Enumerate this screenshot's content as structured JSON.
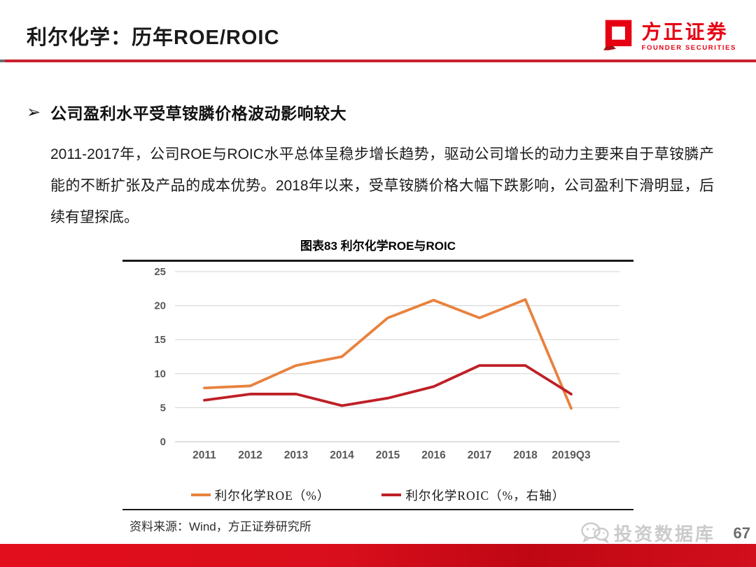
{
  "page": {
    "page_number": "67"
  },
  "header": {
    "title": "利尔化学：历年ROE/ROIC",
    "logo": {
      "name": "方正证券",
      "subtitle": "FOUNDER SECURITIES"
    }
  },
  "content": {
    "bullet_arrow": "➢",
    "bullet_heading": "公司盈利水平受草铵膦价格波动影响较大",
    "paragraph": "2011-2017年，公司ROE与ROIC水平总体呈稳步增长趋势，驱动公司增长的动力主要来自于草铵膦产能的不断扩张及产品的成本优势。2018年以来，受草铵膦价格大幅下跌影响，公司盈利下滑明显，后续有望探底。"
  },
  "chart": {
    "title": "图表83 利尔化学ROE与ROIC",
    "source": "资料来源：Wind，方正证券研究所"
  },
  "chart_data": {
    "type": "line",
    "title": "图表83 利尔化学ROE与ROIC",
    "categories": [
      "2011",
      "2012",
      "2013",
      "2014",
      "2015",
      "2016",
      "2017",
      "2018",
      "2019Q3"
    ],
    "series": [
      {
        "name": "利尔化学ROE（%）",
        "color": "#E8823E",
        "values": [
          7.9,
          8.2,
          11.2,
          12.5,
          18.2,
          20.8,
          18.2,
          20.9,
          4.9
        ]
      },
      {
        "name": "利尔化学ROIC（%，右轴）",
        "color": "#BE2026",
        "values": [
          6.1,
          7.0,
          7.0,
          5.3,
          6.4,
          8.1,
          11.2,
          11.2,
          7.0
        ]
      }
    ],
    "ylim": [
      0,
      25
    ],
    "yticks": [
      0,
      5,
      10,
      15,
      20,
      25
    ],
    "grid": true,
    "legend_position": "bottom",
    "source": "资料来源：Wind，方正证券研究所"
  },
  "watermark": {
    "text": "投资数据库"
  },
  "colors": {
    "header_divider": "#C9202E",
    "bottom_bar": "#D20E1C",
    "logo_red": "#E60012",
    "gridline": "#D9D9D9",
    "tick_label": "#595959",
    "watermark_gray": "#CBCBCB"
  }
}
